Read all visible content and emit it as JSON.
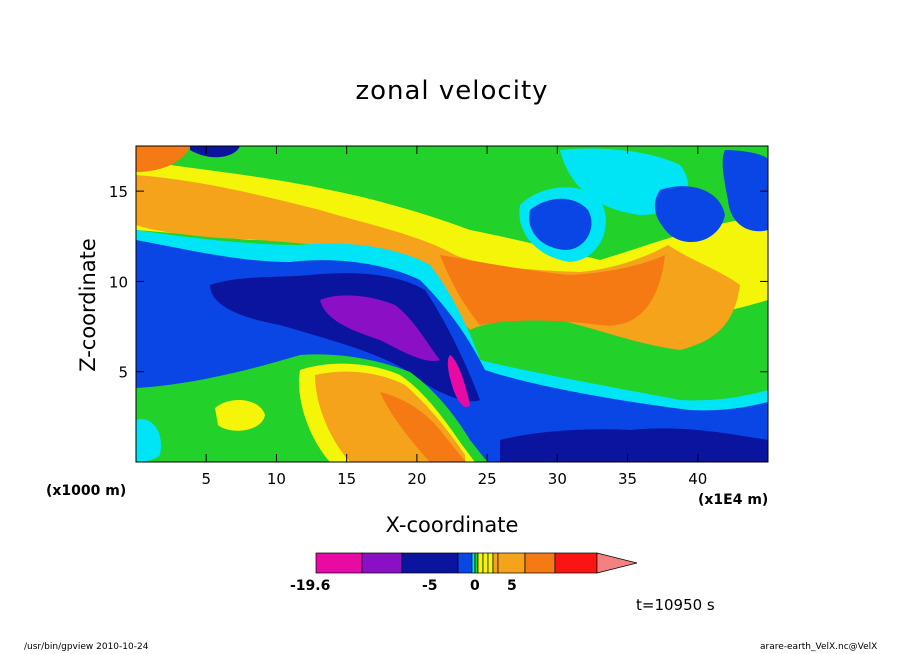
{
  "title": "zonal velocity",
  "xlabel": "X-coordinate",
  "ylabel": "Z-coordinate",
  "x_unit": "(x1E4 m)",
  "y_unit": "(x1000 m)",
  "time_label": "t=10950 s",
  "footer_left": "/usr/bin/gpview   2010-10-24",
  "footer_right": "arare-earth_VelX.nc@VelX",
  "colorbar_labels": [
    "-19.6",
    "-5",
    "0",
    "5"
  ],
  "colors": {
    "c_neg_max": "#e70aa3",
    "c_purple": "#8b0fc4",
    "c_navy": "#0a149e",
    "c_blue": "#0a46e6",
    "c_cyan": "#00e5f5",
    "c_green": "#22d12a",
    "c_yellow": "#f5f50a",
    "c_lightorange": "#f5a31a",
    "c_orange": "#f57a14",
    "c_red": "#fa1414",
    "c_pink": "#f58080"
  },
  "chart_data": {
    "type": "contour",
    "title": "zonal velocity",
    "xlabel": "X-coordinate",
    "ylabel": "Z-coordinate",
    "xlim": [
      0,
      45
    ],
    "ylim": [
      0,
      17.5
    ],
    "x_ticks": [
      5,
      10,
      15,
      20,
      25,
      30,
      35,
      40
    ],
    "y_ticks": [
      5,
      10,
      15
    ],
    "colorbar": {
      "min": -19.6,
      "labels": [
        "-19.6",
        "-5",
        "0",
        "5"
      ],
      "segment_colors": [
        "#e70aa3",
        "#8b0fc4",
        "#0a149e",
        "#0a46e6",
        "#00e5f5",
        "#22d12a",
        "#f5f50a",
        "#f5a31a",
        "#f57a14",
        "#fa1414",
        "#f58080"
      ]
    },
    "time": "t=10950 s"
  }
}
